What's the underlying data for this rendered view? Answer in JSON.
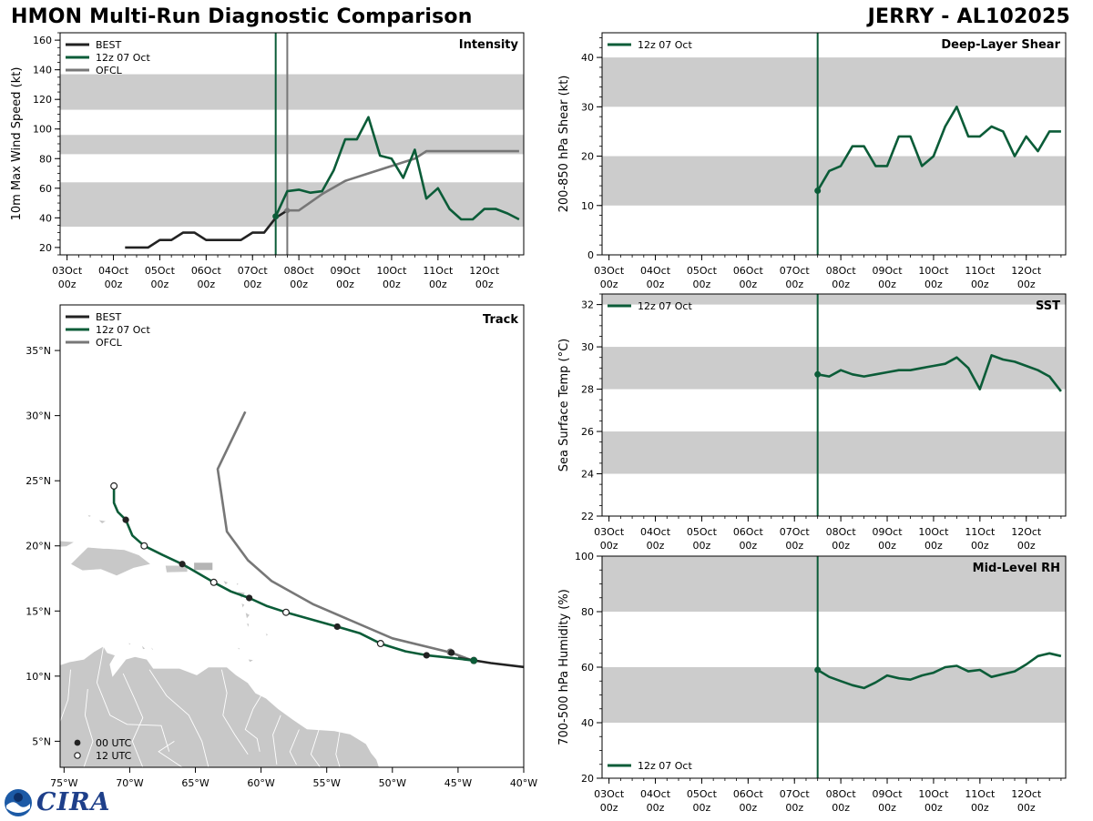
{
  "header": {
    "title_left": "HMON Multi-Run Diagnostic Comparison",
    "title_right": "JERRY - AL102025"
  },
  "logo": {
    "text": "CIRA",
    "badge_icon": "noaa-badge-icon"
  },
  "colors": {
    "best": "#222222",
    "run": "#0b5c38",
    "ofcl": "#777777",
    "band": "#cccccc",
    "land": "#c8c8c8"
  },
  "time_axis": {
    "ticks": [
      {
        "day": 0,
        "label1": "03Oct",
        "label2": "00z"
      },
      {
        "day": 1,
        "label1": "04Oct",
        "label2": "00z"
      },
      {
        "day": 2,
        "label1": "05Oct",
        "label2": "00z"
      },
      {
        "day": 3,
        "label1": "06Oct",
        "label2": "00z"
      },
      {
        "day": 4,
        "label1": "07Oct",
        "label2": "00z"
      },
      {
        "day": 5,
        "label1": "08Oct",
        "label2": "00z"
      },
      {
        "day": 6,
        "label1": "09Oct",
        "label2": "00z"
      },
      {
        "day": 7,
        "label1": "10Oct",
        "label2": "00z"
      },
      {
        "day": 8,
        "label1": "11Oct",
        "label2": "00z"
      },
      {
        "day": 9,
        "label1": "12Oct",
        "label2": "00z"
      }
    ],
    "xlim_days": [
      -0.15,
      9.85
    ],
    "init_day": 4.5,
    "ofcl_init_day": 4.75
  },
  "chart_data": [
    {
      "id": "intensity",
      "type": "line",
      "title": "Intensity",
      "ylabel": "10m Max Wind Speed (kt)",
      "ylim": [
        15,
        165
      ],
      "yticks": [
        20,
        40,
        60,
        80,
        100,
        120,
        140,
        160
      ],
      "bands": [
        [
          34,
          64
        ],
        [
          83,
          96
        ],
        [
          113,
          137
        ]
      ],
      "legend": [
        "BEST",
        "12z 07 Oct",
        "OFCL"
      ],
      "series": [
        {
          "name": "BEST",
          "x": [
            1.25,
            1.5,
            1.75,
            2.0,
            2.25,
            2.5,
            2.75,
            3.0,
            3.25,
            3.5,
            3.75,
            4.0,
            4.25,
            4.5,
            4.75
          ],
          "y": [
            20,
            20,
            20,
            25,
            25,
            30,
            30,
            25,
            25,
            25,
            25,
            30,
            30,
            40,
            45
          ]
        },
        {
          "name": "12z 07 Oct",
          "x": [
            4.5,
            4.75,
            5.0,
            5.25,
            5.5,
            5.75,
            6.0,
            6.25,
            6.5,
            6.75,
            7.0,
            7.25,
            7.5,
            7.75,
            8.0,
            8.25,
            8.5,
            8.75,
            9.0,
            9.25,
            9.5,
            9.75
          ],
          "y": [
            41,
            58,
            59,
            57,
            58,
            72,
            93,
            93,
            108,
            82,
            80,
            67,
            86,
            53,
            60,
            46,
            39,
            39,
            46,
            46,
            43,
            39
          ]
        },
        {
          "name": "OFCL",
          "x": [
            4.75,
            5.0,
            5.5,
            6.0,
            6.5,
            7.0,
            7.5,
            7.75,
            8.5,
            9.0,
            9.75
          ],
          "y": [
            45,
            45,
            56,
            65,
            70,
            75,
            80,
            85,
            85,
            85,
            85
          ]
        }
      ]
    },
    {
      "id": "shear",
      "type": "line",
      "title": "Deep-Layer Shear",
      "ylabel": "200-850 hPa Shear (kt)",
      "ylim": [
        0,
        45
      ],
      "yticks": [
        0,
        10,
        20,
        30,
        40
      ],
      "bands": [
        [
          10,
          20
        ],
        [
          30,
          40
        ]
      ],
      "legend": [
        "12z 07 Oct"
      ],
      "series": [
        {
          "name": "12z 07 Oct",
          "x": [
            4.5,
            4.75,
            5.0,
            5.25,
            5.5,
            5.75,
            6.0,
            6.25,
            6.5,
            6.75,
            7.0,
            7.25,
            7.5,
            7.75,
            8.0,
            8.25,
            8.5,
            8.75,
            9.0,
            9.25,
            9.5,
            9.75
          ],
          "y": [
            13,
            17,
            18,
            22,
            22,
            18,
            18,
            24,
            24,
            18,
            20,
            26,
            30,
            24,
            24,
            26,
            25,
            20,
            24,
            21,
            25,
            25
          ]
        }
      ]
    },
    {
      "id": "sst",
      "type": "line",
      "title": "SST",
      "ylabel": "Sea Surface Temp (°C)",
      "ylim": [
        22,
        32.5
      ],
      "yticks": [
        22,
        24,
        26,
        28,
        30,
        32
      ],
      "bands": [
        [
          24,
          26
        ],
        [
          28,
          30
        ],
        [
          32,
          33
        ]
      ],
      "legend": [
        "12z 07 Oct"
      ],
      "series": [
        {
          "name": "12z 07 Oct",
          "x": [
            4.5,
            4.75,
            5.0,
            5.25,
            5.5,
            5.75,
            6.0,
            6.25,
            6.5,
            6.75,
            7.0,
            7.25,
            7.5,
            7.75,
            8.0,
            8.25,
            8.5,
            8.75,
            9.0,
            9.25,
            9.5,
            9.75
          ],
          "y": [
            28.7,
            28.6,
            28.9,
            28.7,
            28.6,
            28.7,
            28.8,
            28.9,
            28.9,
            29.0,
            29.1,
            29.2,
            29.5,
            29.0,
            28.0,
            29.6,
            29.4,
            29.3,
            29.1,
            28.9,
            28.6,
            27.9
          ]
        }
      ]
    },
    {
      "id": "rh",
      "type": "line",
      "title": "Mid-Level RH",
      "ylabel": "700-500 hPa Humidity (%)",
      "ylim": [
        20,
        100
      ],
      "yticks": [
        20,
        40,
        60,
        80,
        100
      ],
      "bands": [
        [
          40,
          60
        ],
        [
          80,
          100
        ]
      ],
      "legend": [
        "12z 07 Oct"
      ],
      "series": [
        {
          "name": "12z 07 Oct",
          "x": [
            4.5,
            4.75,
            5.0,
            5.25,
            5.5,
            5.75,
            6.0,
            6.25,
            6.5,
            6.75,
            7.0,
            7.25,
            7.5,
            7.75,
            8.0,
            8.25,
            8.5,
            8.75,
            9.0,
            9.25,
            9.5,
            9.75
          ],
          "y": [
            59,
            56.5,
            55,
            53.5,
            52.5,
            54.5,
            57,
            56,
            55.5,
            57,
            58,
            60,
            60.5,
            58.5,
            59,
            56.5,
            57.5,
            58.5,
            61,
            64,
            65,
            64
          ]
        }
      ]
    },
    {
      "id": "track",
      "type": "line",
      "title": "Track",
      "xlim_lon": [
        -75.3,
        -40.0
      ],
      "ylim_lat": [
        3.0,
        38.5
      ],
      "xticks": [
        {
          "v": -75,
          "label": "75°W"
        },
        {
          "v": -70,
          "label": "70°W"
        },
        {
          "v": -65,
          "label": "65°W"
        },
        {
          "v": -60,
          "label": "60°W"
        },
        {
          "v": -55,
          "label": "55°W"
        },
        {
          "v": -50,
          "label": "50°W"
        },
        {
          "v": -45,
          "label": "45°W"
        },
        {
          "v": -40,
          "label": "40°W"
        }
      ],
      "yticks": [
        {
          "v": 5,
          "label": "5°N"
        },
        {
          "v": 10,
          "label": "10°N"
        },
        {
          "v": 15,
          "label": "15°N"
        },
        {
          "v": 20,
          "label": "20°N"
        },
        {
          "v": 25,
          "label": "25°N"
        },
        {
          "v": 30,
          "label": "30°N"
        },
        {
          "v": 35,
          "label": "35°N"
        }
      ],
      "legend": [
        "BEST",
        "12z 07 Oct",
        "OFCL"
      ],
      "marker_legend": [
        "00 UTC",
        "12 UTC"
      ],
      "series": [
        {
          "name": "BEST",
          "lon": [
            -40.0,
            -42.5,
            -45.0
          ],
          "lat": [
            10.7,
            11.0,
            11.4
          ]
        },
        {
          "name": "12z 07 Oct",
          "lon": [
            -43.8,
            -45.5,
            -47.4,
            -49.0,
            -50.9,
            -52.5,
            -54.2,
            -56.0,
            -58.1,
            -59.6,
            -60.9,
            -62.3,
            -63.6,
            -64.8,
            -66.0,
            -67.5,
            -68.9,
            -69.8,
            -70.3,
            -70.9,
            -71.2,
            -71.2
          ],
          "lat": [
            11.2,
            11.4,
            11.6,
            11.9,
            12.5,
            13.3,
            13.8,
            14.3,
            14.9,
            15.4,
            16.0,
            16.5,
            17.2,
            17.9,
            18.6,
            19.3,
            20.0,
            20.8,
            22.0,
            22.6,
            23.3,
            24.6
          ]
        },
        {
          "name": "OFCL",
          "lon": [
            -43.9,
            -45.5,
            -50.0,
            -56.0,
            -59.2,
            -61.0,
            -62.6,
            -63.3,
            -61.2
          ],
          "lat": [
            11.2,
            11.8,
            12.9,
            15.5,
            17.3,
            18.9,
            21.1,
            25.9,
            30.3
          ]
        }
      ],
      "markers_00utc": {
        "lon": [
          -45.5,
          -47.4,
          -54.2,
          -60.9,
          -66.0,
          -70.3
        ],
        "lat": [
          11.8,
          11.6,
          13.8,
          16.0,
          18.6,
          22.0
        ]
      },
      "markers_12utc": {
        "lon": [
          -43.8,
          -50.9,
          -58.1,
          -63.6,
          -68.9,
          -71.2
        ],
        "lat": [
          11.2,
          12.5,
          14.9,
          17.2,
          20.0,
          24.6
        ]
      }
    }
  ]
}
